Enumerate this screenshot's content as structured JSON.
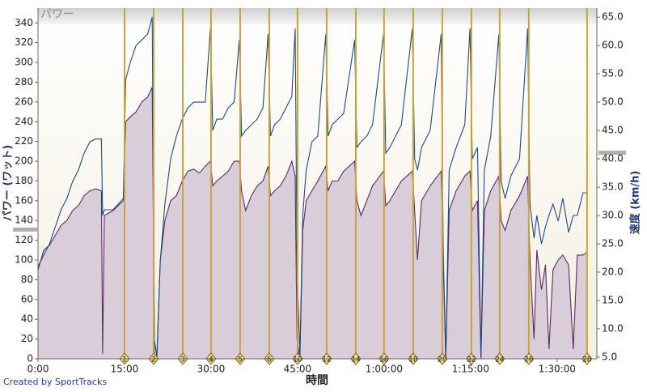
{
  "chart_data": {
    "type": "area-line",
    "title": "パワー",
    "xlabel": "時間",
    "ylabel": "パワー (ワット)",
    "y2label": "速度 (km/h)",
    "footer": "Created by SportTracks",
    "xlim": [
      0,
      96.9
    ],
    "xticks": [
      {
        "value": 0,
        "label": "0:00"
      },
      {
        "value": 15,
        "label": "15:00"
      },
      {
        "value": 30,
        "label": "30:00"
      },
      {
        "value": 45,
        "label": "45:00"
      },
      {
        "value": 60,
        "label": "1:00:00"
      },
      {
        "value": 75,
        "label": "1:15:00"
      },
      {
        "value": 90,
        "label": "1:30:00"
      }
    ],
    "ylim": [
      0,
      355
    ],
    "yticks": [
      0,
      20,
      40,
      60,
      80,
      100,
      120,
      140,
      160,
      180,
      200,
      220,
      240,
      260,
      280,
      300,
      320,
      340
    ],
    "y2lim": [
      4.7,
      66.6
    ],
    "y2ticks": [
      {
        "value": 5,
        "label": "5.0"
      },
      {
        "value": 10,
        "label": "10.0"
      },
      {
        "value": 15,
        "label": "15.0"
      },
      {
        "value": 20,
        "label": "20.0"
      },
      {
        "value": 25,
        "label": "25.0"
      },
      {
        "value": 30,
        "label": "30.0"
      },
      {
        "value": 35,
        "label": "35.0"
      },
      {
        "value": 40,
        "label": "40.0"
      },
      {
        "value": 45,
        "label": "45.0"
      },
      {
        "value": 50,
        "label": "50.0"
      },
      {
        "value": 55,
        "label": "55.0"
      },
      {
        "value": 60,
        "label": "60.0"
      },
      {
        "value": 65,
        "label": "65.0"
      }
    ],
    "x": [
      0,
      1,
      2,
      3,
      4,
      5,
      6,
      7,
      8,
      9,
      10,
      11,
      11.2,
      11.5,
      13,
      14.8,
      15.2,
      16,
      17,
      18,
      19,
      19.8,
      20.2,
      20.6,
      21.2,
      22,
      23,
      24,
      25,
      26,
      27,
      28,
      29,
      29.9,
      30.3,
      31,
      32,
      33,
      34,
      34.9,
      35.3,
      36,
      37,
      38,
      39,
      39.9,
      40.3,
      41,
      42,
      43,
      44,
      44.6,
      44.9,
      45.4,
      45.9,
      46.5,
      47.5,
      48.5,
      49.9,
      50.3,
      51,
      52,
      53,
      54.9,
      55.3,
      56,
      57,
      58,
      59.9,
      60.3,
      61,
      62,
      63,
      64.9,
      65.3,
      65.8,
      66.5,
      68,
      69.9,
      70.3,
      70.7,
      71.3,
      72.5,
      74,
      74.9,
      75.3,
      76.2,
      76.8,
      77.4,
      78.5,
      79.9,
      80.3,
      81,
      82,
      83.5,
      84.9,
      85.3,
      86,
      86.5,
      87.3,
      88,
      88.6,
      89.3,
      90.2,
      91,
      92,
      92.8,
      93.5,
      94.5,
      95.2
    ],
    "series": [
      {
        "name": "パワー",
        "color": "#5a2a6a",
        "fill": "#d9cdd9",
        "values": [
          90,
          110,
          115,
          125,
          135,
          140,
          150,
          155,
          165,
          170,
          172,
          170,
          5,
          145,
          150,
          160,
          240,
          245,
          250,
          260,
          265,
          275,
          5,
          0,
          100,
          140,
          160,
          165,
          180,
          190,
          192,
          188,
          195,
          200,
          175,
          180,
          185,
          190,
          200,
          200,
          170,
          150,
          165,
          175,
          180,
          195,
          165,
          170,
          175,
          185,
          200,
          185,
          20,
          0,
          130,
          160,
          170,
          180,
          195,
          170,
          180,
          180,
          190,
          200,
          160,
          145,
          160,
          175,
          190,
          155,
          160,
          170,
          180,
          190,
          150,
          100,
          160,
          175,
          190,
          100,
          0,
          150,
          170,
          185,
          190,
          150,
          160,
          0,
          150,
          170,
          185,
          140,
          130,
          150,
          165,
          185,
          100,
          20,
          110,
          70,
          95,
          10,
          90,
          100,
          105,
          95,
          10,
          105,
          105,
          108
        ]
      },
      {
        "name": "速度",
        "color": "#1f4a86",
        "axis": "y2",
        "values": [
          21,
          23,
          25,
          28,
          31,
          33,
          36,
          38,
          41,
          43,
          43.5,
          43.5,
          30,
          31,
          31,
          33,
          54,
          57,
          60,
          61,
          62,
          65,
          8,
          5,
          22,
          32,
          40,
          44,
          47,
          49,
          50,
          50,
          50,
          63,
          45,
          47,
          47,
          49,
          50,
          61,
          44,
          45,
          46,
          47,
          49,
          62,
          44,
          46,
          47,
          49,
          51,
          63,
          22,
          5,
          30,
          38,
          43,
          44,
          62,
          44,
          46,
          47,
          48,
          61,
          42,
          43,
          44,
          46,
          62,
          41,
          42,
          44,
          46,
          63,
          40,
          38,
          42,
          45,
          62,
          20,
          5,
          38,
          42,
          46,
          63,
          40,
          42,
          5,
          38,
          44,
          62,
          36,
          33,
          37,
          40,
          63,
          32,
          26,
          30,
          25,
          28,
          30,
          32,
          29,
          33,
          27,
          30,
          30,
          34,
          34
        ]
      }
    ],
    "laps": [
      {
        "label": "1",
        "x": 15.0
      },
      {
        "label": "2",
        "x": 20.05
      },
      {
        "label": "3",
        "x": 25.1
      },
      {
        "label": "4",
        "x": 30.0
      },
      {
        "label": "5",
        "x": 35.05
      },
      {
        "label": "6",
        "x": 40.1
      },
      {
        "label": "10",
        "x": 45.0
      },
      {
        "label": "12",
        "x": 50.05
      },
      {
        "label": "14",
        "x": 55.1
      },
      {
        "label": "16",
        "x": 60.0
      },
      {
        "label": "18",
        "x": 65.05
      },
      {
        "label": "20",
        "x": 70.1
      },
      {
        "label": "22",
        "x": 75.15
      },
      {
        "label": "24",
        "x": 80.05
      },
      {
        "label": "26",
        "x": 85.1
      },
      {
        "label": "28",
        "x": 95.2
      }
    ]
  }
}
